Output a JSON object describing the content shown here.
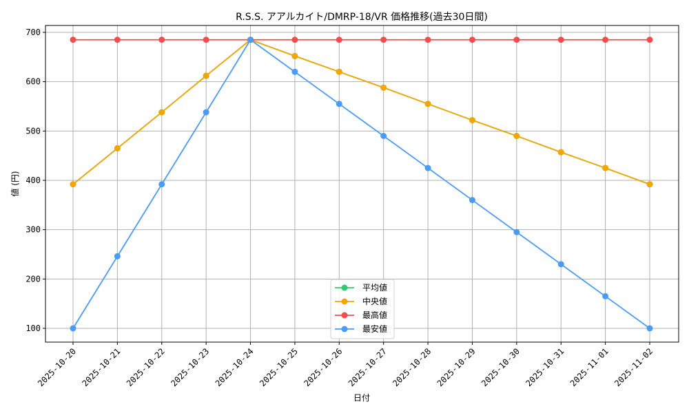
{
  "chart_data": {
    "type": "line",
    "title": "R.S.S. アアルカイト/DMRP-18/VR 価格推移(過去30日間)",
    "xlabel": "日付",
    "ylabel": "値 (円)",
    "ylim": [
      70,
      715
    ],
    "yticks": [
      100,
      200,
      300,
      400,
      500,
      600,
      700
    ],
    "grid": true,
    "legend_position": "lower center",
    "x": [
      "2025-10-20",
      "2025-10-21",
      "2025-10-22",
      "2025-10-23",
      "2025-10-24",
      "2025-10-25",
      "2025-10-26",
      "2025-10-27",
      "2025-10-28",
      "2025-10-29",
      "2025-10-30",
      "2025-10-31",
      "2025-11-01",
      "2025-11-02"
    ],
    "series": [
      {
        "name": "平均値",
        "color": "#2ecc71",
        "values": [
          392,
          465,
          538,
          612,
          685,
          652,
          620,
          588,
          555,
          522,
          490,
          457,
          425,
          392
        ]
      },
      {
        "name": "中央値",
        "color": "#f5a500",
        "values": [
          392,
          465,
          538,
          612,
          685,
          652,
          620,
          588,
          555,
          522,
          490,
          457,
          425,
          392
        ]
      },
      {
        "name": "最高値",
        "color": "#f24d4d",
        "values": [
          685,
          685,
          685,
          685,
          685,
          685,
          685,
          685,
          685,
          685,
          685,
          685,
          685,
          685
        ]
      },
      {
        "name": "最安値",
        "color": "#4a9bf5",
        "values": [
          100,
          246,
          392,
          538,
          685,
          620,
          555,
          490,
          425,
          360,
          295,
          230,
          165,
          100
        ]
      }
    ]
  }
}
